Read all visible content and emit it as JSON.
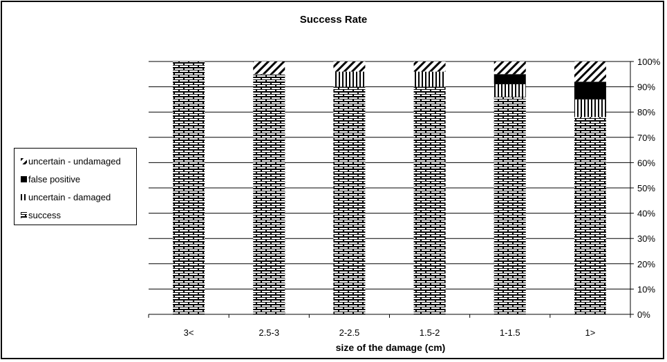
{
  "chart_data": {
    "type": "bar",
    "stacked": true,
    "title": "Success Rate",
    "xlabel": "size of the damage (cm)",
    "ylabel": "",
    "categories": [
      "3<",
      "2.5-3",
      "2-2.5",
      "1.5-2",
      "1-1.5",
      "1>"
    ],
    "ylim": [
      0,
      100
    ],
    "y_axis_side": "right",
    "y_ticks": [
      "0%",
      "10%",
      "20%",
      "30%",
      "40%",
      "50%",
      "60%",
      "70%",
      "80%",
      "90%",
      "100%"
    ],
    "grid": true,
    "legend_position": "left",
    "series": [
      {
        "name": "success",
        "values": [
          100,
          95,
          90,
          90,
          86,
          78
        ],
        "pattern": "brick"
      },
      {
        "name": "uncertain - damaged",
        "values": [
          0,
          0,
          6,
          6,
          5,
          7
        ],
        "pattern": "vertical"
      },
      {
        "name": "false positive",
        "values": [
          0,
          0,
          0,
          0,
          4,
          7
        ],
        "pattern": "solid"
      },
      {
        "name": "uncertain - undamaged",
        "values": [
          0,
          5,
          4,
          4,
          5,
          8
        ],
        "pattern": "diagonal"
      }
    ],
    "legend_order": [
      "uncertain - undamaged",
      "false positive",
      "uncertain - damaged",
      "success"
    ]
  },
  "colors": {
    "ink": "#000000",
    "background": "#ffffff",
    "grid": "#000000"
  }
}
